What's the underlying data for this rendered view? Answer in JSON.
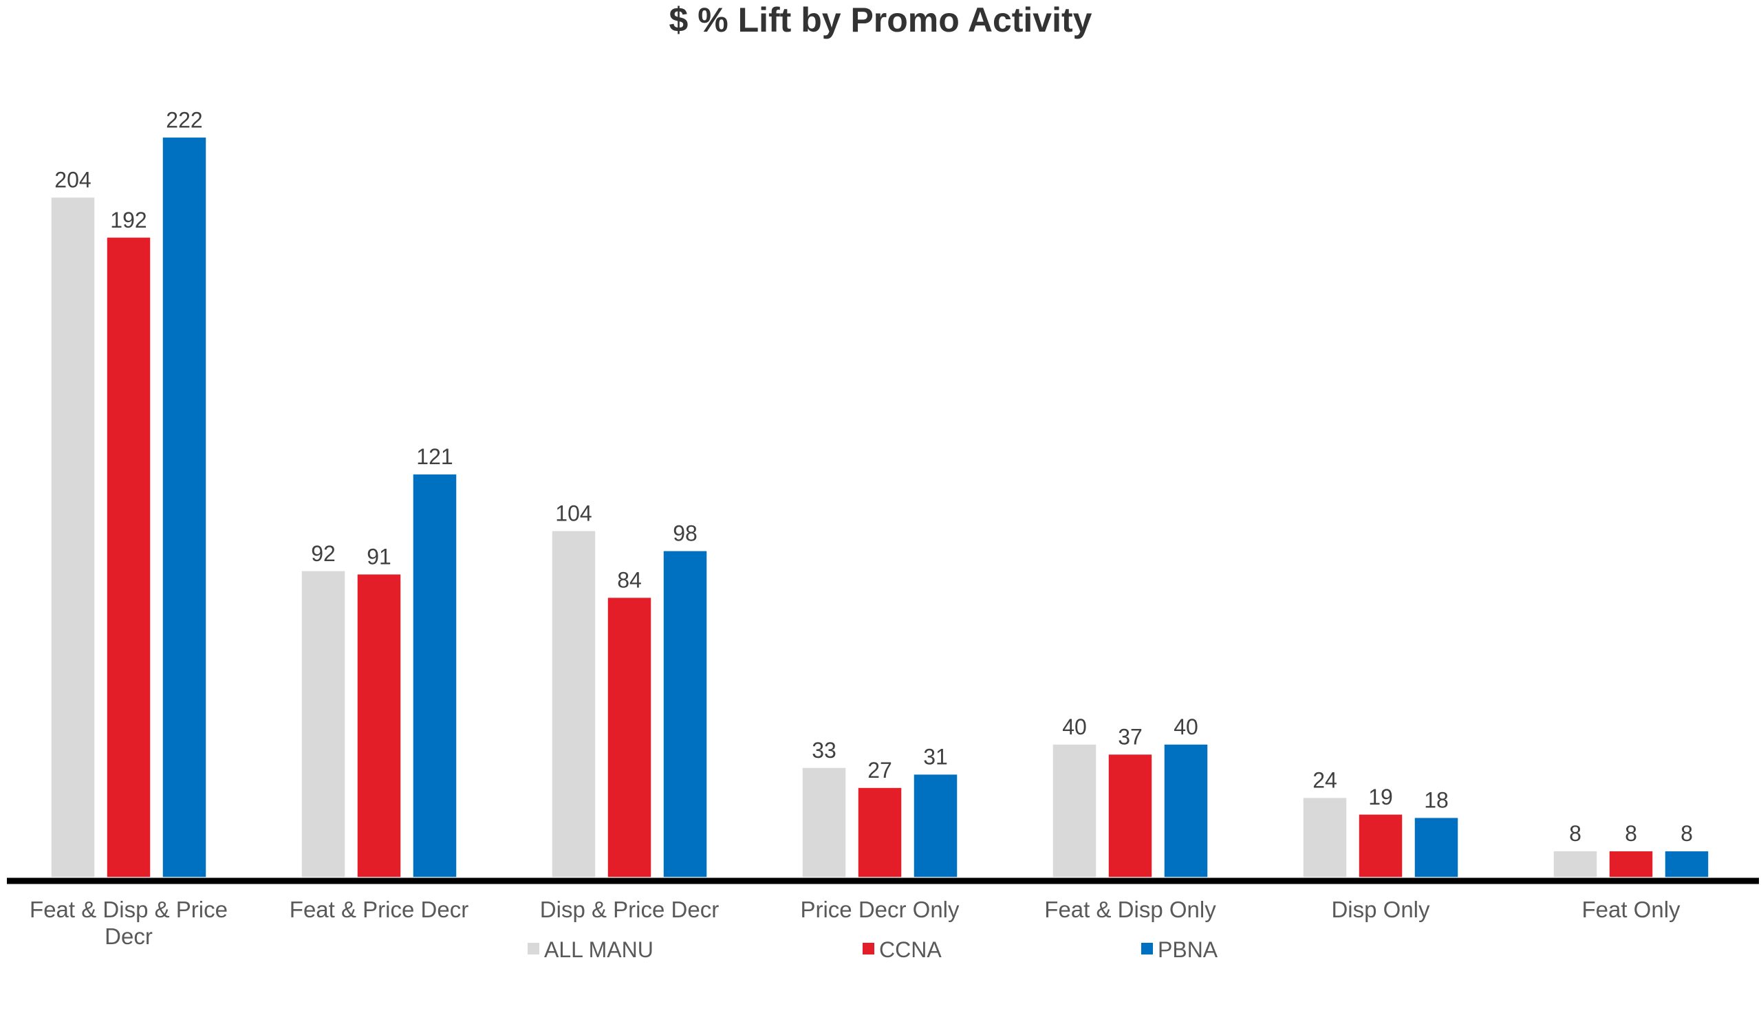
{
  "chart_data": {
    "type": "bar",
    "title": "$ % Lift by Promo Activity",
    "xlabel": "",
    "ylabel": "",
    "ylim": [
      0,
      250
    ],
    "grid": false,
    "legend_position": "bottom",
    "categories": [
      [
        "Feat & Disp & Price",
        "Decr"
      ],
      [
        "Feat & Price Decr"
      ],
      [
        "Disp & Price Decr"
      ],
      [
        "Price Decr Only"
      ],
      [
        "Feat & Disp Only"
      ],
      [
        "Disp Only"
      ],
      [
        "Feat Only"
      ]
    ],
    "series": [
      {
        "name": "ALL MANU",
        "color": "#d9d9d9",
        "values": [
          204,
          92,
          104,
          33,
          40,
          24,
          8
        ]
      },
      {
        "name": "CCNA",
        "color": "#e31e28",
        "values": [
          192,
          91,
          84,
          27,
          37,
          19,
          8
        ]
      },
      {
        "name": "PBNA",
        "color": "#0070c0",
        "values": [
          222,
          121,
          98,
          31,
          40,
          18,
          8
        ]
      }
    ]
  }
}
